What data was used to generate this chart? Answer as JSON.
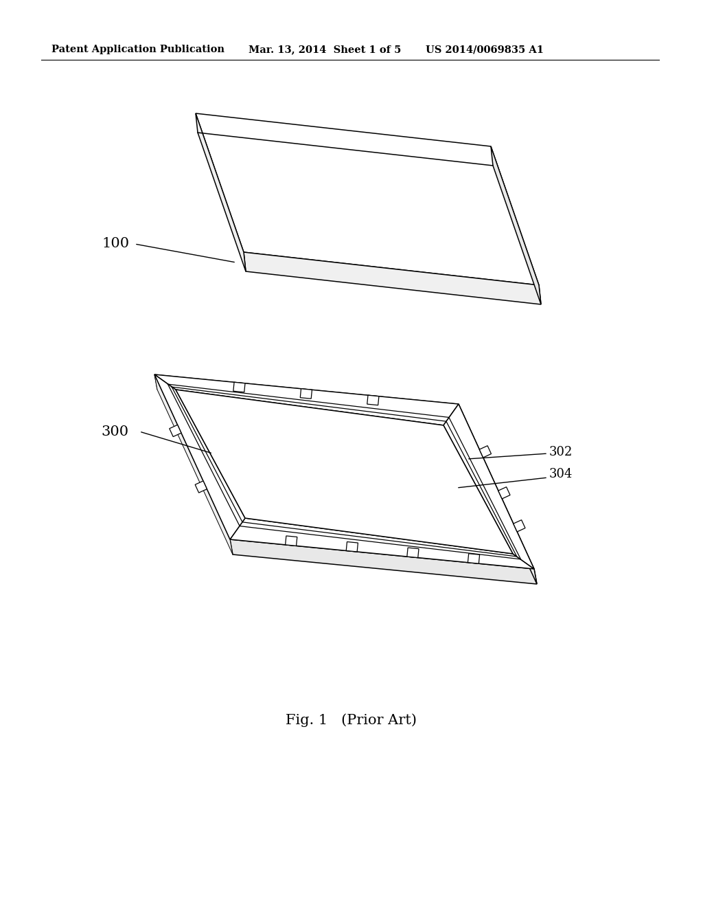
{
  "background_color": "#ffffff",
  "header_left": "Patent Application Publication",
  "header_center": "Mar. 13, 2014  Sheet 1 of 5",
  "header_right": "US 2014/0069835 A1",
  "header_fontsize": 10.5,
  "caption": "Fig. 1   (Prior Art)",
  "caption_fontsize": 15,
  "label_100": "100",
  "label_300": "300",
  "label_302": "302",
  "label_304": "304",
  "line_color": "#000000",
  "line_width": 1.1
}
